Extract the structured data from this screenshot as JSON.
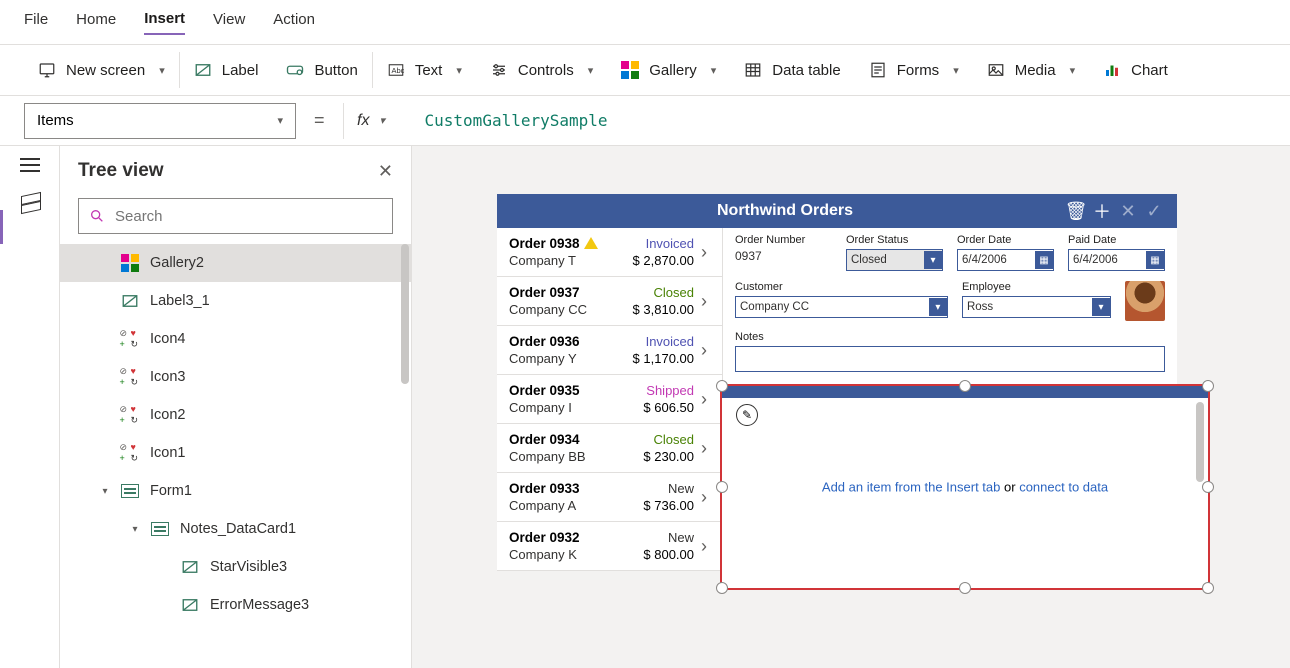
{
  "menubar": {
    "items": [
      "File",
      "Home",
      "Insert",
      "View",
      "Action"
    ],
    "active_index": 2
  },
  "ribbon": {
    "new_screen": "New screen",
    "label": "Label",
    "button": "Button",
    "text": "Text",
    "controls": "Controls",
    "gallery": "Gallery",
    "data_table": "Data table",
    "forms": "Forms",
    "media": "Media",
    "chart": "Chart"
  },
  "formula": {
    "property": "Items",
    "expression": "CustomGallerySample"
  },
  "tree": {
    "title": "Tree view",
    "search_placeholder": "Search",
    "items": [
      {
        "label": "Gallery2",
        "depth": 1,
        "icon": "gallery",
        "selected": true
      },
      {
        "label": "Label3_1",
        "depth": 1,
        "icon": "pencil"
      },
      {
        "label": "Icon4",
        "depth": 1,
        "icon": "hn"
      },
      {
        "label": "Icon3",
        "depth": 1,
        "icon": "hn"
      },
      {
        "label": "Icon2",
        "depth": 1,
        "icon": "hn"
      },
      {
        "label": "Icon1",
        "depth": 1,
        "icon": "hn"
      },
      {
        "label": "Form1",
        "depth": 1,
        "icon": "form",
        "caret": "down"
      },
      {
        "label": "Notes_DataCard1",
        "depth": 2,
        "icon": "form",
        "caret": "down"
      },
      {
        "label": "StarVisible3",
        "depth": 3,
        "icon": "pencil"
      },
      {
        "label": "ErrorMessage3",
        "depth": 3,
        "icon": "pencil"
      }
    ]
  },
  "app": {
    "title": "Northwind Orders",
    "header_bg": "#3c5a99",
    "orders": [
      {
        "no": "Order 0938",
        "company": "Company T",
        "amount": "$ 2,870.00",
        "status": "Invoiced",
        "status_class": "st-invoiced",
        "warn": true
      },
      {
        "no": "Order 0937",
        "company": "Company CC",
        "amount": "$ 3,810.00",
        "status": "Closed",
        "status_class": "st-closed"
      },
      {
        "no": "Order 0936",
        "company": "Company Y",
        "amount": "$ 1,170.00",
        "status": "Invoiced",
        "status_class": "st-invoiced"
      },
      {
        "no": "Order 0935",
        "company": "Company I",
        "amount": "$ 606.50",
        "status": "Shipped",
        "status_class": "st-shipped"
      },
      {
        "no": "Order 0934",
        "company": "Company BB",
        "amount": "$ 230.00",
        "status": "Closed",
        "status_class": "st-closed"
      },
      {
        "no": "Order 0933",
        "company": "Company A",
        "amount": "$ 736.00",
        "status": "New",
        "status_class": "st-new"
      },
      {
        "no": "Order 0932",
        "company": "Company K",
        "amount": "$ 800.00",
        "status": "New",
        "status_class": "st-new"
      }
    ],
    "detail": {
      "labels": {
        "order_number": "Order Number",
        "order_status": "Order Status",
        "order_date": "Order Date",
        "paid_date": "Paid Date",
        "customer": "Customer",
        "employee": "Employee",
        "notes": "Notes"
      },
      "order_number": "0937",
      "order_status": "Closed",
      "order_date": "6/4/2006",
      "paid_date": "6/4/2006",
      "customer": "Company CC",
      "employee": "Ross"
    }
  },
  "placeholder": {
    "before": "Add an item from the Insert tab",
    "or": " or ",
    "link": "connect to data",
    "border_color": "#d13438"
  }
}
